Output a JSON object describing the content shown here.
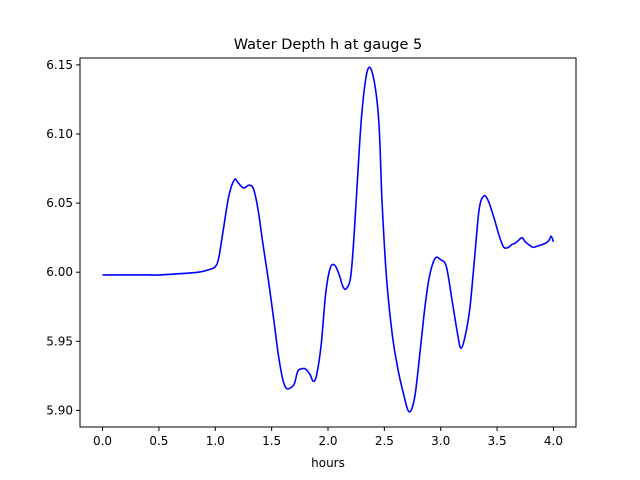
{
  "chart_data": {
    "type": "line",
    "title": "Water Depth h at gauge 5",
    "xlabel": "hours",
    "ylabel": "",
    "xlim": [
      -0.2,
      4.2
    ],
    "ylim": [
      5.888,
      6.155
    ],
    "x_ticks": [
      0.0,
      0.5,
      1.0,
      1.5,
      2.0,
      2.5,
      3.0,
      3.5,
      4.0
    ],
    "x_tick_labels": [
      "0.0",
      "0.5",
      "1.0",
      "1.5",
      "2.0",
      "2.5",
      "3.0",
      "3.5",
      "4.0"
    ],
    "y_ticks": [
      5.9,
      5.95,
      6.0,
      6.05,
      6.1,
      6.15
    ],
    "y_tick_labels": [
      "5.90",
      "5.95",
      "6.00",
      "6.05",
      "6.10",
      "6.15"
    ],
    "grid": false,
    "series": [
      {
        "color": "#0000ff",
        "x": [
          0.0,
          0.2,
          0.4,
          0.5,
          0.7,
          0.85,
          0.95,
          1.0,
          1.03,
          1.07,
          1.12,
          1.17,
          1.2,
          1.25,
          1.3,
          1.34,
          1.38,
          1.42,
          1.47,
          1.52,
          1.56,
          1.6,
          1.63,
          1.66,
          1.7,
          1.73,
          1.76,
          1.8,
          1.84,
          1.87,
          1.9,
          1.94,
          1.98,
          2.02,
          2.06,
          2.1,
          2.13,
          2.16,
          2.2,
          2.23,
          2.26,
          2.3,
          2.35,
          2.4,
          2.45,
          2.48,
          2.52,
          2.57,
          2.62,
          2.67,
          2.72,
          2.77,
          2.82,
          2.86,
          2.9,
          2.95,
          3.0,
          3.05,
          3.1,
          3.15,
          3.18,
          3.22,
          3.26,
          3.3,
          3.34,
          3.38,
          3.42,
          3.47,
          3.52,
          3.56,
          3.6,
          3.63,
          3.66,
          3.69,
          3.72,
          3.75,
          3.78,
          3.82,
          3.86,
          3.9,
          3.93,
          3.96,
          3.98,
          4.0
        ],
        "y": [
          5.998,
          5.998,
          5.998,
          5.998,
          5.999,
          6.0,
          6.002,
          6.004,
          6.01,
          6.03,
          6.055,
          6.067,
          6.065,
          6.061,
          6.063,
          6.06,
          6.045,
          6.022,
          5.995,
          5.965,
          5.94,
          5.922,
          5.916,
          5.916,
          5.919,
          5.928,
          5.93,
          5.93,
          5.926,
          5.921,
          5.926,
          5.948,
          5.985,
          6.003,
          6.005,
          5.998,
          5.99,
          5.988,
          5.996,
          6.025,
          6.065,
          6.115,
          6.146,
          6.142,
          6.11,
          6.05,
          5.995,
          5.955,
          5.93,
          5.912,
          5.899,
          5.91,
          5.945,
          5.975,
          5.997,
          6.01,
          6.009,
          6.004,
          5.98,
          5.955,
          5.945,
          5.955,
          5.975,
          6.01,
          6.045,
          6.055,
          6.052,
          6.04,
          6.026,
          6.018,
          6.018,
          6.02,
          6.021,
          6.023,
          6.025,
          6.022,
          6.02,
          6.018,
          6.019,
          6.02,
          6.021,
          6.023,
          6.026,
          6.022
        ]
      }
    ]
  }
}
